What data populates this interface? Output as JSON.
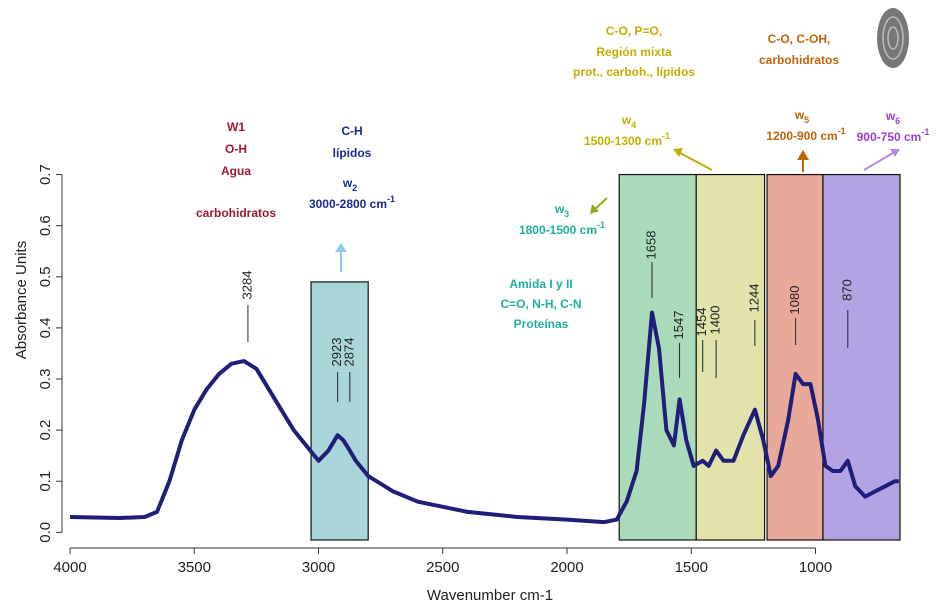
{
  "chart_data": {
    "type": "line",
    "x_label": "Wavenumber cm-1",
    "y_label": "Absorbance Units",
    "xlim": [
      4000,
      660
    ],
    "ylim": [
      -0.015,
      0.93
    ],
    "xticks": [
      4000,
      3500,
      3000,
      2500,
      2000,
      1500,
      1000
    ],
    "yticks": [
      {
        "value": 0,
        "label": "0.0"
      },
      0.1,
      0.2,
      0.3,
      0.4,
      0.5,
      0.6,
      0.7
    ],
    "series": [
      {
        "color": "#1f1f7a",
        "x": [
          4000,
          3800,
          3700,
          3650,
          3600,
          3550,
          3500,
          3450,
          3400,
          3350,
          3300,
          3250,
          3200,
          3150,
          3100,
          3050,
          3000,
          2960,
          2923,
          2900,
          2874,
          2850,
          2800,
          2700,
          2600,
          2500,
          2400,
          2200,
          2000,
          1850,
          1800,
          1760,
          1720,
          1690,
          1658,
          1630,
          1600,
          1570,
          1547,
          1520,
          1490,
          1454,
          1430,
          1400,
          1370,
          1330,
          1290,
          1244,
          1210,
          1180,
          1150,
          1110,
          1080,
          1050,
          1020,
          990,
          960,
          930,
          900,
          870,
          840,
          800,
          760,
          720,
          680,
          665
        ],
        "values": [
          0.03,
          0.028,
          0.03,
          0.04,
          0.1,
          0.18,
          0.24,
          0.28,
          0.31,
          0.33,
          0.335,
          0.32,
          0.28,
          0.24,
          0.2,
          0.17,
          0.14,
          0.16,
          0.19,
          0.18,
          0.16,
          0.14,
          0.11,
          0.08,
          0.06,
          0.05,
          0.04,
          0.03,
          0.025,
          0.02,
          0.025,
          0.06,
          0.12,
          0.25,
          0.43,
          0.36,
          0.2,
          0.17,
          0.26,
          0.18,
          0.13,
          0.14,
          0.13,
          0.16,
          0.14,
          0.14,
          0.19,
          0.24,
          0.18,
          0.11,
          0.13,
          0.22,
          0.31,
          0.29,
          0.29,
          0.22,
          0.13,
          0.12,
          0.12,
          0.14,
          0.09,
          0.07,
          0.08,
          0.09,
          0.1,
          0.1
        ]
      }
    ],
    "bands": [
      {
        "from": 3030,
        "to": 2800,
        "top": 0.49,
        "color": "#a9d5d9"
      },
      {
        "from": 1790,
        "to": 1480,
        "top": 0.7,
        "color": "#a9dbbb"
      },
      {
        "from": 1480,
        "to": 1205,
        "top": 0.7,
        "color": "#e2e2ab"
      },
      {
        "from": 1195,
        "to": 970,
        "top": 0.7,
        "color": "#e8a99a"
      },
      {
        "from": 970,
        "to": 660,
        "top": 0.7,
        "color": "#b3a3e3"
      }
    ],
    "peak_labels": [
      3284,
      2923,
      2874,
      1658,
      1547,
      1454,
      1400,
      1244,
      1080,
      870
    ],
    "annotations": [
      {
        "color": "#a01830",
        "lines": [
          "W1",
          "O-H",
          "Agua",
          "carbohidratos"
        ]
      },
      {
        "color": "#1a2a90",
        "lines": [
          "C-H",
          "lípidos"
        ],
        "w": "w",
        "sub": "2",
        "range": "3000-2800 cm",
        "sup": "-1"
      },
      {
        "color": "#1fae9c",
        "lines": [
          "Amida I y II",
          "C=O, N-H, C-N",
          "Proteínas"
        ],
        "w": "w",
        "sub": "3",
        "range": "1800-1500 cm",
        "sup": "-1"
      },
      {
        "color": "#c2ae00",
        "lines": [
          "C-O, P=O,",
          "Región mixta",
          "prot., carboh., lípidos"
        ],
        "w": "w",
        "sub": "4",
        "range": "1500-1300 cm",
        "sup": "-1"
      },
      {
        "color": "#c0640c",
        "lines": [
          "C-O, C-OH,",
          "carbohidratos"
        ],
        "w": "w",
        "sub": "5",
        "range": "1200-900 cm",
        "sup": "-1"
      },
      {
        "color": "#9a3ed0",
        "lines": [],
        "w": "w",
        "sub": "6",
        "range": "900-750 cm",
        "sup": "-1"
      }
    ]
  }
}
